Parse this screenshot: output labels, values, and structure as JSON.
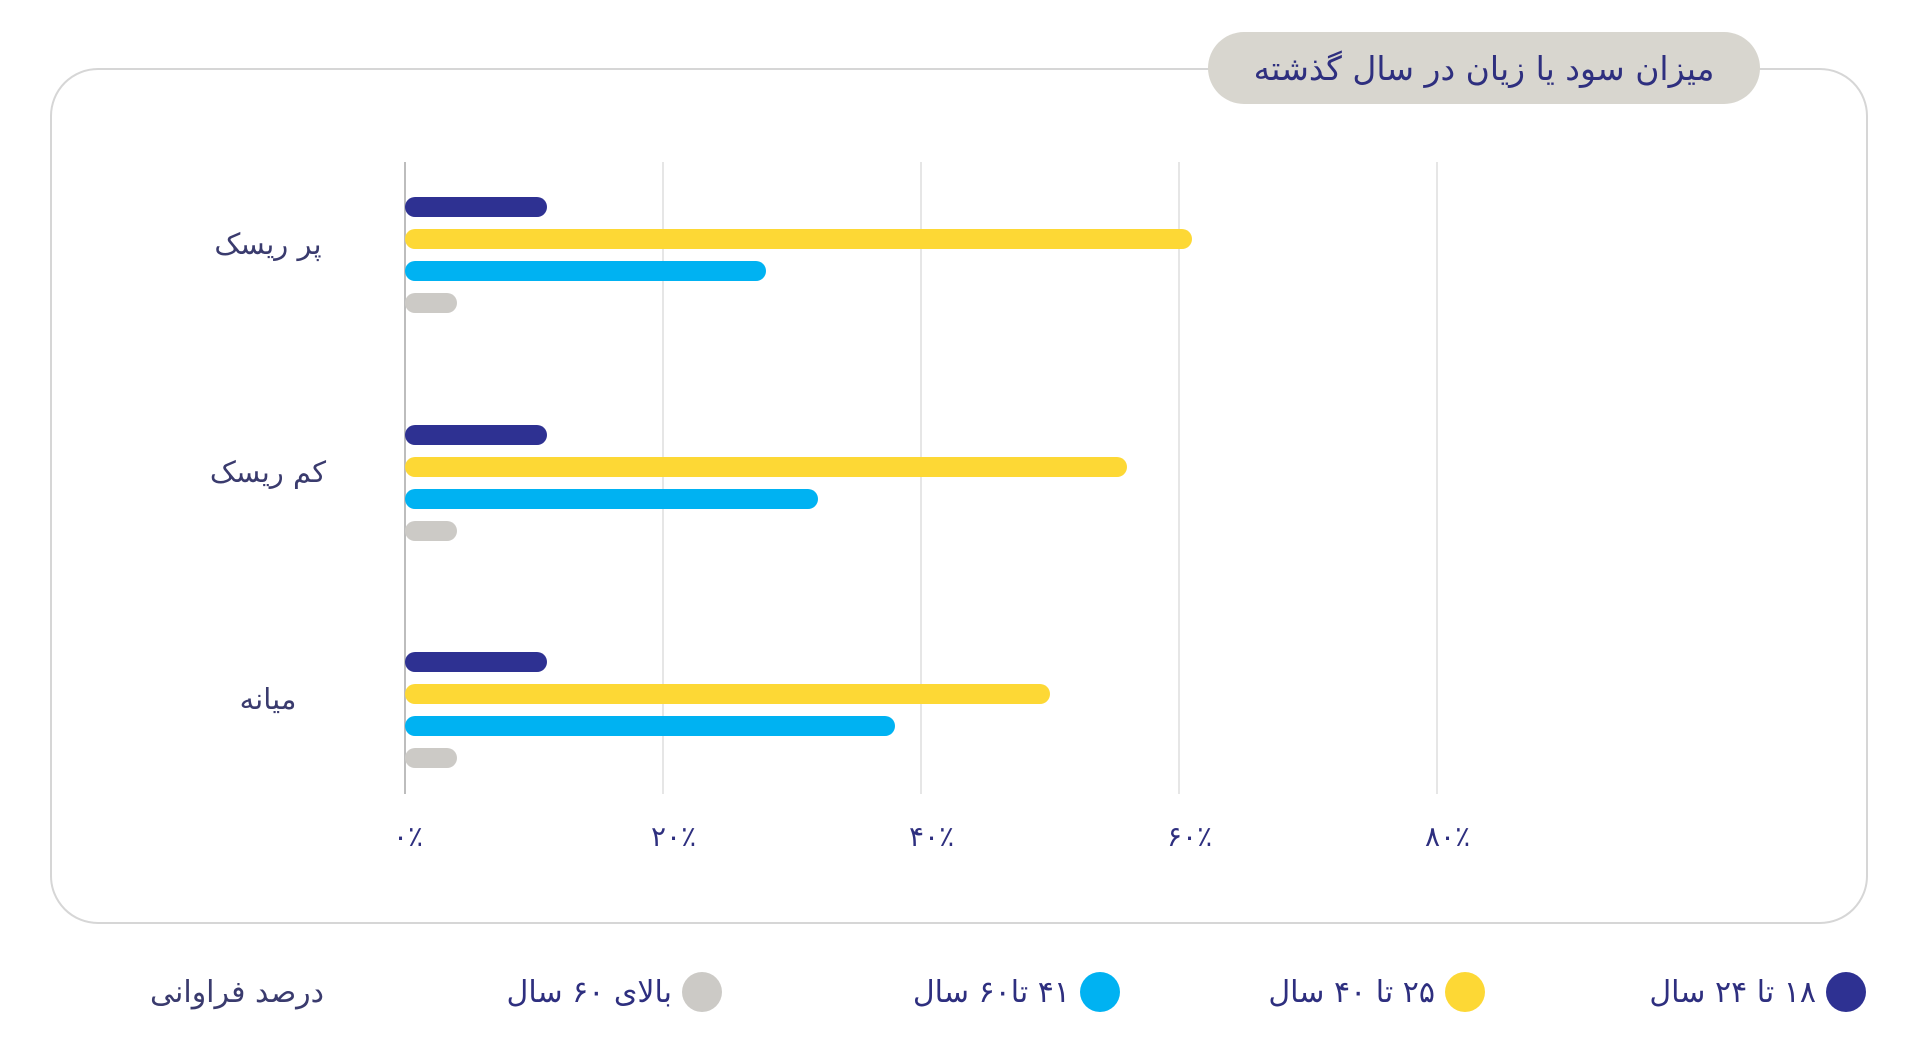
{
  "title": "میزان سود یا زیان در سال گذشته",
  "unit_note": "درصد فراوانی",
  "colors": {
    "card_border": "#D6D6D6",
    "title_pill_bg": "#D8D6CF",
    "text": "#2E2F7F",
    "gridline": "#E6E6E6",
    "axis": "#BDBDBD"
  },
  "legend": [
    {
      "label": "۱۸ تا ۲۴ سال",
      "color": "#2E3192"
    },
    {
      "label": "۲۵ تا ۴۰ سال",
      "color": "#FDD835"
    },
    {
      "label": "۴۱ تا۶۰ سال",
      "color": "#00B2F2"
    },
    {
      "label": "بالای ۶۰ سال",
      "color": "#CCCAC6"
    }
  ],
  "x_ticks": [
    "۰٪",
    "۲۰٪",
    "۴۰٪",
    "۶۰٪",
    "۸۰٪"
  ],
  "categories": [
    "پر ریسک",
    "کم ریسک",
    "میانه"
  ],
  "chart_data": {
    "type": "bar",
    "orientation": "horizontal",
    "title": "میزان سود یا زیان در سال گذشته",
    "xlabel": "درصد فراوانی",
    "ylabel": "",
    "categories": [
      "پر ریسک",
      "کم ریسک",
      "میانه"
    ],
    "series": [
      {
        "name": "۱۸ تا ۲۴ سال",
        "color": "#2E3192",
        "values": [
          11,
          11,
          11
        ]
      },
      {
        "name": "۲۵ تا ۴۰ سال",
        "color": "#FDD835",
        "values": [
          61,
          56,
          50
        ]
      },
      {
        "name": "۴۱ تا۶۰ سال",
        "color": "#00B2F2",
        "values": [
          28,
          32,
          38
        ]
      },
      {
        "name": "بالای ۶۰ سال",
        "color": "#CCCAC6",
        "values": [
          4,
          4,
          4
        ]
      }
    ],
    "xlim": [
      0,
      80
    ],
    "x_tick_values": [
      0,
      20,
      40,
      60,
      80
    ],
    "x_tick_labels": [
      "۰٪",
      "۲۰٪",
      "۴۰٪",
      "۶۰٪",
      "۸۰٪"
    ],
    "grid": true,
    "legend_position": "bottom"
  }
}
